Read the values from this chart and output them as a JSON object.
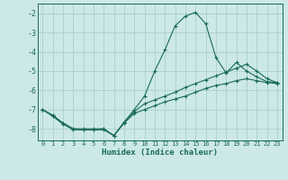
{
  "xlabel": "Humidex (Indice chaleur)",
  "bg_color": "#cce8e8",
  "grid_color": "#aacfcf",
  "line_color": "#1a6b5a",
  "xlim": [
    -0.5,
    23.5
  ],
  "ylim": [
    -8.6,
    -1.5
  ],
  "yticks": [
    -8,
    -7,
    -6,
    -5,
    -4,
    -3,
    -2
  ],
  "xticks": [
    0,
    1,
    2,
    3,
    4,
    5,
    6,
    7,
    8,
    9,
    10,
    11,
    12,
    13,
    14,
    15,
    16,
    17,
    18,
    19,
    20,
    21,
    22,
    23
  ],
  "line1_x": [
    0,
    1,
    2,
    3,
    4,
    5,
    6,
    7,
    8,
    9,
    10,
    11,
    12,
    13,
    14,
    15,
    16,
    17,
    18,
    19,
    20,
    21,
    22,
    23
  ],
  "line1_y": [
    -7.0,
    -7.3,
    -7.7,
    -8.0,
    -8.0,
    -8.0,
    -8.0,
    -8.35,
    -7.65,
    -7.0,
    -6.3,
    -5.0,
    -3.9,
    -2.65,
    -2.15,
    -1.95,
    -2.55,
    -4.3,
    -5.1,
    -4.55,
    -5.0,
    -5.3,
    -5.55,
    -5.6
  ],
  "line2_x": [
    0,
    1,
    2,
    3,
    4,
    5,
    6,
    7,
    8,
    9,
    10,
    11,
    12,
    13,
    14,
    15,
    16,
    17,
    18,
    19,
    20,
    21,
    22,
    23
  ],
  "line2_y": [
    -7.0,
    -7.3,
    -7.7,
    -8.0,
    -8.05,
    -8.05,
    -8.0,
    -8.35,
    -7.65,
    -7.1,
    -6.7,
    -6.5,
    -6.3,
    -6.1,
    -5.85,
    -5.65,
    -5.45,
    -5.25,
    -5.05,
    -4.85,
    -4.65,
    -5.0,
    -5.4,
    -5.6
  ],
  "line3_x": [
    0,
    1,
    2,
    3,
    4,
    5,
    6,
    7,
    8,
    9,
    10,
    11,
    12,
    13,
    14,
    15,
    16,
    17,
    18,
    19,
    20,
    21,
    22,
    23
  ],
  "line3_y": [
    -7.0,
    -7.35,
    -7.75,
    -8.05,
    -8.05,
    -8.05,
    -8.05,
    -8.35,
    -7.7,
    -7.2,
    -7.0,
    -6.8,
    -6.6,
    -6.45,
    -6.3,
    -6.1,
    -5.9,
    -5.75,
    -5.65,
    -5.5,
    -5.4,
    -5.5,
    -5.6,
    -5.65
  ]
}
